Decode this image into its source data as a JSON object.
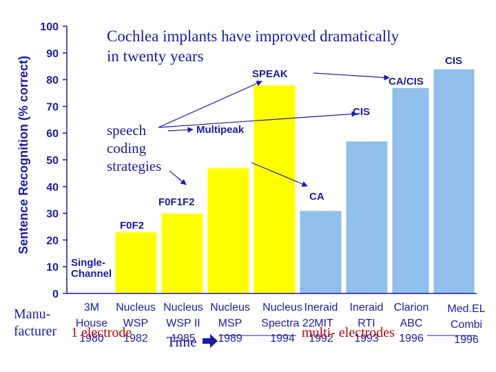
{
  "chart_data": {
    "type": "bar",
    "ylabel": "Sentence Recognition (% correct)",
    "ylim": [
      0,
      100
    ],
    "yticks": [
      0,
      10,
      20,
      30,
      40,
      50,
      60,
      70,
      80,
      90,
      100
    ],
    "categories": [
      "3M House 1980",
      "Nucleus WSP 1982",
      "Nucleus WSP II 1985",
      "Nucleus MSP 1989",
      "Nucleus Spectra 22 1994",
      "Ineraid MIT 1992",
      "Ineraid RTI 1993",
      "Clarion ABC 1996",
      "Med.EL Combi 1996"
    ],
    "values": [
      5,
      23,
      30,
      47,
      78,
      31,
      57,
      77,
      84
    ],
    "bar_colors": [
      "#ffffff",
      "#ffff00",
      "#ffff00",
      "#ffff00",
      "#ffff00",
      "#8fbfea",
      "#8fbfea",
      "#8fbfea",
      "#8fbfea"
    ],
    "bar_labels": [
      "Single-Channel",
      "F0F2",
      "F0F1F2",
      "Multipeak",
      "SPEAK",
      "CA",
      "CIS",
      "CA/CIS",
      "CIS"
    ],
    "manufacturers": [
      [
        "3M",
        "House",
        "1980"
      ],
      [
        "Nucleus",
        "WSP",
        "1982"
      ],
      [
        "Nucleus",
        "WSP II",
        "1985"
      ],
      [
        "Nucleus",
        "MSP",
        "1989"
      ],
      [
        "Nucleus",
        "Spectra 22",
        "1994"
      ],
      [
        "Ineraid",
        "MIT",
        "1992"
      ],
      [
        "Ineraid",
        "RTI",
        "1993"
      ],
      [
        "Clarion",
        "ABC",
        "1996"
      ],
      [
        "Med.EL",
        "Combi",
        "1996"
      ]
    ],
    "annotations": {
      "headline": [
        "Cochlea implants have improved dramatically",
        "in twenty years"
      ],
      "strategies": [
        "speech",
        "coding",
        "strategies"
      ],
      "manufacturer_label": [
        "Manu-",
        "facturer"
      ],
      "one_electrode": "1 electrode",
      "time": "Time",
      "multi_electrodes": "multi- electrodes"
    }
  }
}
